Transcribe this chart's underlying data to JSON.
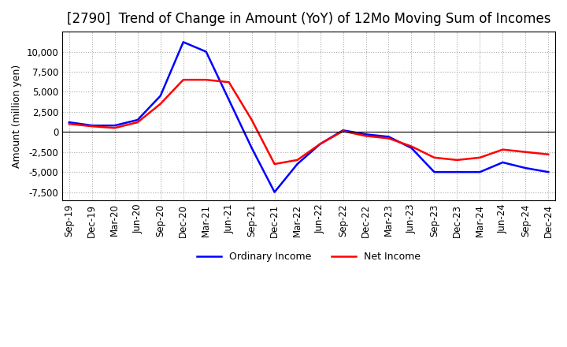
{
  "title": "[2790]  Trend of Change in Amount (YoY) of 12Mo Moving Sum of Incomes",
  "ylabel": "Amount (million yen)",
  "ylim": [
    -8500,
    12500
  ],
  "yticks": [
    -7500,
    -5000,
    -2500,
    0,
    2500,
    5000,
    7500,
    10000
  ],
  "x_labels": [
    "Sep-19",
    "Dec-19",
    "Mar-20",
    "Jun-20",
    "Sep-20",
    "Dec-20",
    "Mar-21",
    "Jun-21",
    "Sep-21",
    "Dec-21",
    "Mar-22",
    "Jun-22",
    "Sep-22",
    "Dec-22",
    "Mar-23",
    "Jun-23",
    "Sep-23",
    "Dec-23",
    "Mar-24",
    "Jun-24",
    "Sep-24",
    "Dec-24"
  ],
  "ordinary_income": [
    1200,
    800,
    800,
    1500,
    4500,
    11200,
    10000,
    4000,
    -2000,
    -7500,
    -4000,
    -1500,
    200,
    -300,
    -600,
    -2000,
    -5000,
    -5000,
    -5000,
    -3800,
    -4500,
    -5000
  ],
  "net_income": [
    1000,
    700,
    500,
    1200,
    3500,
    6500,
    6500,
    6200,
    1500,
    -4000,
    -3500,
    -1500,
    100,
    -500,
    -800,
    -1800,
    -3200,
    -3500,
    -3200,
    -2200,
    -2500,
    -2800
  ],
  "ordinary_color": "#0000ff",
  "net_color": "#ff0000",
  "grid_color": "#aaaaaa",
  "background_color": "#ffffff",
  "title_fontsize": 12,
  "label_fontsize": 9,
  "tick_fontsize": 8.5
}
